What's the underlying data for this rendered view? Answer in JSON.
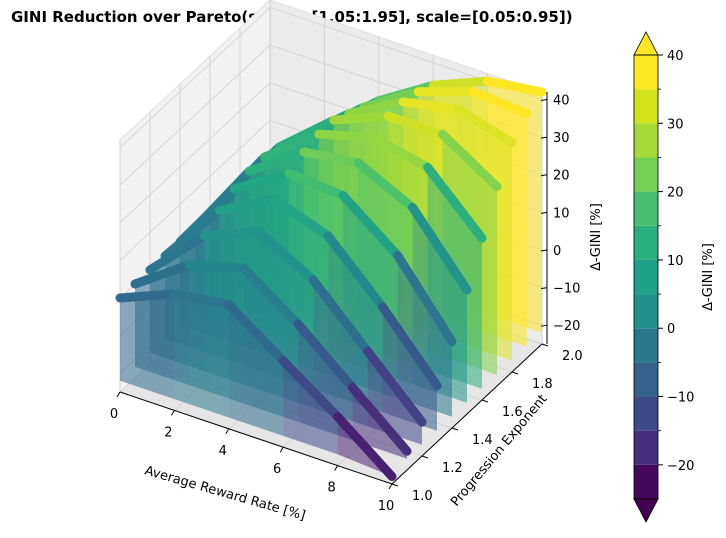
{
  "chart_data": {
    "type": "surface3d",
    "title": "GINI Reduction over Pareto(shape=[1.05:1.95], scale=[0.05:0.95])",
    "xlabel": "Average Reward Rate [%]",
    "ylabel": "Progression Exponent",
    "zlabel": "Δ-GINI [%]",
    "xlim": [
      0,
      10
    ],
    "ylim": [
      1.0,
      2.0
    ],
    "zlim": [
      -25,
      42
    ],
    "x_ticks": [
      "0",
      "2",
      "4",
      "6",
      "8",
      "10"
    ],
    "y_ticks": [
      "1.0",
      "1.2",
      "1.4",
      "1.6",
      "1.8",
      "2.0"
    ],
    "z_ticks": [
      "−20",
      "−10",
      "0",
      "10",
      "20",
      "30",
      "40"
    ],
    "grid": true,
    "colormap": "viridis",
    "colorbar": {
      "label": "Δ-GINI [%]",
      "range": [
        -25,
        40
      ],
      "levels": [
        -25,
        -20,
        -15,
        -10,
        -5,
        0,
        5,
        10,
        15,
        20,
        25,
        30,
        35,
        40
      ],
      "extend": "both",
      "ticks": [
        "−20",
        "−10",
        "0",
        "10",
        "20",
        "30",
        "40"
      ],
      "colors": [
        "#46085c",
        "#472f7d",
        "#3e4a89",
        "#33638d",
        "#2a788e",
        "#21918c",
        "#1fa088",
        "#29af7f",
        "#44bf70",
        "#75d054",
        "#a5db36",
        "#d2e21b",
        "#fde725"
      ],
      "extend_colors": [
        "#440154",
        "#fde725"
      ]
    },
    "series": [
      {
        "y": 1.0,
        "x": [
          0,
          2,
          4,
          6,
          8,
          10
        ],
        "z": [
          0,
          6,
          8,
          -2,
          -12,
          -23
        ]
      },
      {
        "y": 1.1,
        "x": [
          0,
          2,
          4,
          6,
          8,
          10
        ],
        "z": [
          0,
          10,
          14,
          4,
          -8,
          -20
        ]
      },
      {
        "y": 1.2,
        "x": [
          0,
          2,
          4,
          6,
          8,
          10
        ],
        "z": [
          0,
          14,
          20,
          12,
          -2,
          -16
        ]
      },
      {
        "y": 1.3,
        "x": [
          0,
          2,
          4,
          6,
          8,
          10
        ],
        "z": [
          0,
          17,
          25,
          20,
          6,
          -10
        ]
      },
      {
        "y": 1.4,
        "x": [
          0,
          2,
          4,
          6,
          8,
          10
        ],
        "z": [
          0,
          19,
          28,
          27,
          16,
          -2
        ]
      },
      {
        "y": 1.5,
        "x": [
          0,
          2,
          4,
          6,
          8,
          10
        ],
        "z": [
          0,
          20,
          30,
          32,
          25,
          8
        ]
      },
      {
        "y": 1.6,
        "x": [
          0,
          2,
          4,
          6,
          8,
          10
        ],
        "z": [
          0,
          20,
          31,
          35,
          32,
          18
        ]
      },
      {
        "y": 1.7,
        "x": [
          0,
          2,
          4,
          6,
          8,
          10
        ],
        "z": [
          0,
          19,
          31,
          37,
          37,
          28
        ]
      },
      {
        "y": 1.8,
        "x": [
          0,
          2,
          4,
          6,
          8,
          10
        ],
        "z": [
          0,
          17,
          29,
          37,
          40,
          36
        ]
      },
      {
        "y": 1.9,
        "x": [
          0,
          2,
          4,
          6,
          8,
          10
        ],
        "z": [
          0,
          15,
          27,
          36,
          41,
          40
        ]
      },
      {
        "y": 2.0,
        "x": [
          0,
          2,
          4,
          6,
          8,
          10
        ],
        "z": [
          0,
          13,
          25,
          34,
          40,
          42
        ]
      }
    ]
  }
}
